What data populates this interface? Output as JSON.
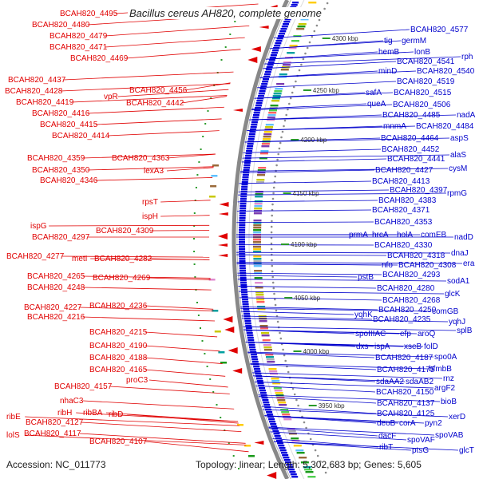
{
  "title": "Bacillus cereus AH820, complete genome",
  "footer": {
    "accession": "Accession: NC_011773",
    "topology": "Topology: linear; Length: 5,302,683 bp; Genes: 5,605"
  },
  "colors": {
    "left_labels": "#e00000",
    "right_labels": "#0000cc",
    "backbone": "#888888",
    "forward_features": "#0000dd",
    "reverse_features": "#e00000"
  },
  "kbp_ticks": [
    "4300 kbp",
    "4250 kbp",
    "4200 kbp",
    "4150 kbp",
    "4100 kbp",
    "4050 kbp",
    "4000 kbp",
    "3950 kbp"
  ],
  "left_labels": [
    "BCAH820_4495",
    "BCAH820_4480",
    "BCAH820_4479",
    "BCAH820_4471",
    "BCAH820_4469",
    "BCAH820_4437",
    "BCAH820_4456",
    "BCAH820_4428",
    "vpR",
    "BCAH820_4442",
    "BCAH820_4419",
    "BCAH820_4416",
    "BCAH820_4415",
    "BCAH820_4414",
    "BCAH820_4359",
    "BCAH820_4363",
    "BCAH820_4350",
    "lexA3",
    "BCAH820_4346",
    "rpsT",
    "ispH",
    "ispG",
    "BCAH820_4309",
    "BCAH820_4297",
    "BCAH820_4277",
    "metI",
    "BCAH820_4282",
    "BCAH820_4265",
    "BCAH820_4269",
    "BCAH820_4248",
    "BCAH820_4227",
    "BCAH820_4236",
    "BCAH820_4216",
    "BCAH820_4215",
    "BCAH820_4190",
    "BCAH820_4188",
    "BCAH820_4165",
    "proC3",
    "BCAH820_4157",
    "nhaC3",
    "ribH",
    "ribBA",
    "ribD",
    "ribE",
    "BCAH820_4127",
    "lolS",
    "BCAH820_4117",
    "BCAH820_4107"
  ],
  "right_labels": [
    "BCAH820_4577",
    "tig",
    "germM",
    "rph",
    "hemB",
    "lonB",
    "BCAH820_4541",
    "minD",
    "BCAH820_4540",
    "BCAH820_4519",
    "safA",
    "BCAH820_4515",
    "queA",
    "BCAH820_4506",
    "BCAH820_4485",
    "nadA",
    "mnmA",
    "BCAH820_4484",
    "BCAH820_4464",
    "aspS",
    "BCAH820_4452",
    "alaS",
    "BCAH820_4441",
    "cysM",
    "BCAH820_4427",
    "BCAH820_4413",
    "BCAH820_4397",
    "rpmG",
    "BCAH820_4383",
    "BCAH820_4371",
    "BCAH820_4353",
    "prmA",
    "hrcA",
    "holA",
    "comEB",
    "nadD",
    "BCAH820_4330",
    "BCAH820_4318",
    "dnaJ",
    "nfo",
    "BCAH820_4308",
    "era",
    "pstB",
    "BCAH820_4293",
    "sodA1",
    "BCAH820_4280",
    "glcK",
    "BCAH820_4268",
    "yqhK",
    "BCAH820_4250",
    "comGB",
    "BCAH820_4235",
    "yqhJ",
    "spoIIIAC",
    "efp",
    "aroQ",
    "splB",
    "dxs",
    "ispA",
    "xseB",
    "folD",
    "BCAH820_4187",
    "spo0A",
    "BCAH820_4175",
    "bfmbB",
    "sdaAA2",
    "sdaAB2",
    "rnz",
    "BCAH820_4150",
    "argF2",
    "BCAH820_4137",
    "bioB",
    "BCAH820_4125",
    "xerD",
    "deoB",
    "corA",
    "pyn2",
    "dacF",
    "spoVAB",
    "ribT",
    "spoVAF",
    "ptsG",
    "glcT"
  ]
}
